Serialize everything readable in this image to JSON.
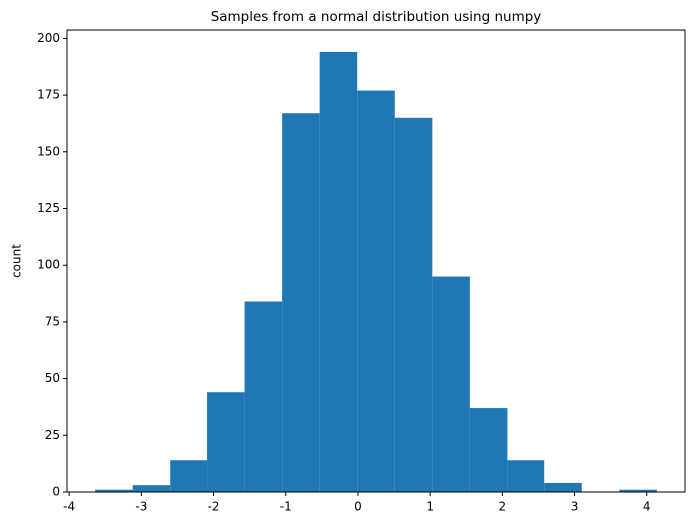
{
  "chart_data": {
    "type": "histogram",
    "title": "Samples from a normal distribution using numpy",
    "y_label": "count",
    "bins": [
      -3.64,
      -3.12,
      -2.6,
      -2.09,
      -1.57,
      -1.05,
      -0.53,
      -0.01,
      0.51,
      1.03,
      1.55,
      2.07,
      2.58,
      3.1,
      3.62,
      4.14
    ],
    "values": [
      1,
      3,
      14,
      44,
      84,
      167,
      194,
      177,
      165,
      95,
      37,
      14,
      4,
      0,
      1
    ],
    "color": "#1f77b4",
    "xlim": [
      -4.03,
      4.53
    ],
    "xticks": [
      -4,
      -3,
      -2,
      -1,
      0,
      1,
      2,
      3,
      4
    ],
    "ylim": [
      0,
      203.7
    ],
    "yticks": [
      0,
      25,
      50,
      75,
      100,
      125,
      150,
      175,
      200
    ],
    "grid": false
  }
}
